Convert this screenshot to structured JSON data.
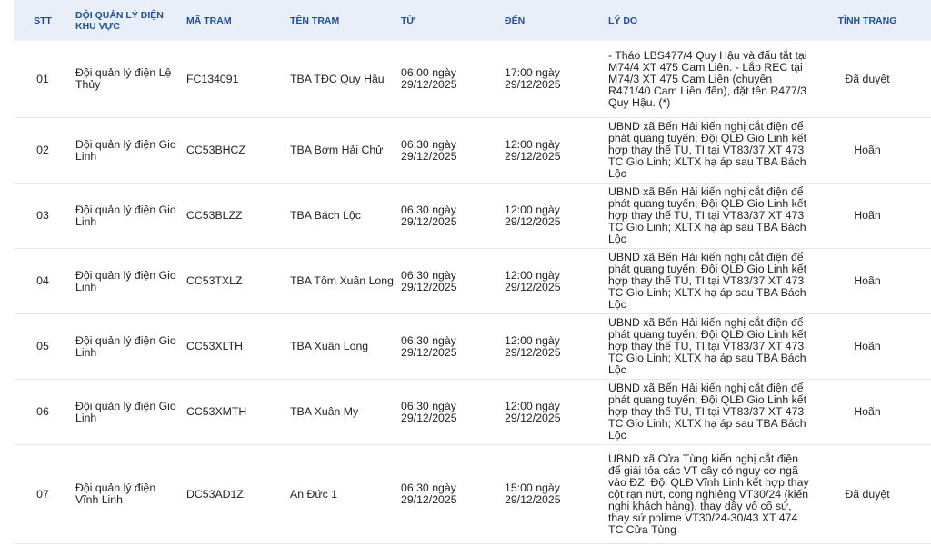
{
  "headers": {
    "stt": "STT",
    "team": "ĐỘI QUẢN LÝ ĐIỆN KHU VỰC",
    "code": "MÃ TRẠM",
    "name": "TÊN TRẠM",
    "from": "TỪ",
    "to": "ĐẾN",
    "reason": "LÝ DO",
    "status": "TÌNH TRẠNG"
  },
  "rows": [
    {
      "stt": "01",
      "team": "Đội quản lý điện Lệ Thủy",
      "code": "FC134091",
      "name": "TBA TĐC Quy Hậu",
      "from": "06:00 ngày 29/12/2025",
      "to": "17:00 ngày 29/12/2025",
      "reason": "- Tháo LBS477/4 Quy Hậu và đấu tắt tại M74/4 XT 475 Cam Liên. - Lắp REC tại M74/3 XT 475 Cam Liên (chuyển R471/40 Cam Liên đến), đặt tên R477/3 Quy Hậu. (*)",
      "status": "Đã duyệt"
    },
    {
      "stt": "02",
      "team": "Đội quản lý điện Gio Linh",
      "code": "CC53BHCZ",
      "name": "TBA Bơm Hải Chử",
      "from": "06:30 ngày 29/12/2025",
      "to": "12:00 ngày 29/12/2025",
      "reason": "UBND xã Bến Hải kiến nghị cắt điện để phát quang tuyến; Đội QLĐ Gio Linh kết hợp thay thế TU, TI tại VT83/37 XT 473 TC Gio Linh; XLTX hạ áp sau TBA Bách Lộc",
      "status": "Hoãn"
    },
    {
      "stt": "03",
      "team": "Đội quản lý điện Gio Linh",
      "code": "CC53BLZZ",
      "name": "TBA Bách Lộc",
      "from": "06:30 ngày 29/12/2025",
      "to": "12:00 ngày 29/12/2025",
      "reason": "UBND xã Bến Hải kiến nghị cắt điện để phát quang tuyến; Đội QLĐ Gio Linh kết hợp thay thế TU, TI tại VT83/37 XT 473 TC Gio Linh; XLTX hạ áp sau TBA Bách Lộc",
      "status": "Hoãn"
    },
    {
      "stt": "04",
      "team": "Đội quản lý điện Gio Linh",
      "code": "CC53TXLZ",
      "name": "TBA Tôm Xuân Long",
      "from": "06:30 ngày 29/12/2025",
      "to": "12:00 ngày 29/12/2025",
      "reason": "UBND xã Bến Hải kiến nghị cắt điện để phát quang tuyến; Đội QLĐ Gio Linh kết hợp thay thế TU, TI tại VT83/37 XT 473 TC Gio Linh; XLTX hạ áp sau TBA Bách Lộc",
      "status": "Hoãn"
    },
    {
      "stt": "05",
      "team": "Đội quản lý điện Gio Linh",
      "code": "CC53XLTH",
      "name": "TBA Xuân Long",
      "from": "06:30 ngày 29/12/2025",
      "to": "12:00 ngày 29/12/2025",
      "reason": "UBND xã Bến Hải kiến nghị cắt điện để phát quang tuyến; Đội QLĐ Gio Linh kết hợp thay thế TU, TI tại VT83/37 XT 473 TC Gio Linh; XLTX hạ áp sau TBA Bách Lộc",
      "status": "Hoãn"
    },
    {
      "stt": "06",
      "team": "Đội quản lý điện Gio Linh",
      "code": "CC53XMTH",
      "name": "TBA Xuân My",
      "from": "06:30 ngày 29/12/2025",
      "to": "12:00 ngày 29/12/2025",
      "reason": "UBND xã Bến Hải kiến nghị cắt điện để phát quang tuyến; Đội QLĐ Gio Linh kết hợp thay thế TU, TI tại VT83/37 XT 473 TC Gio Linh; XLTX hạ áp sau TBA Bách Lộc",
      "status": "Hoãn"
    },
    {
      "stt": "07",
      "team": "Đội quản lý điện Vĩnh Linh",
      "code": "DC53AD1Z",
      "name": "An Đức 1",
      "from": "06:30 ngày 29/12/2025",
      "to": "15:00 ngày 29/12/2025",
      "reason": "UBND xã Cửa Tùng kiến nghị cắt điện để giải tỏa các VT cây có nguy cơ ngã vào ĐZ; Đội QLĐ Vĩnh Linh kết hợp thay cột rạn nứt, cong nghiêng VT30/24 (kiến nghị khách hàng), thay dây vô cố sứ, thay sứ polime VT30/24-30/43 XT 474 TC Cửa Tùng",
      "status": "Đã duyệt"
    }
  ]
}
